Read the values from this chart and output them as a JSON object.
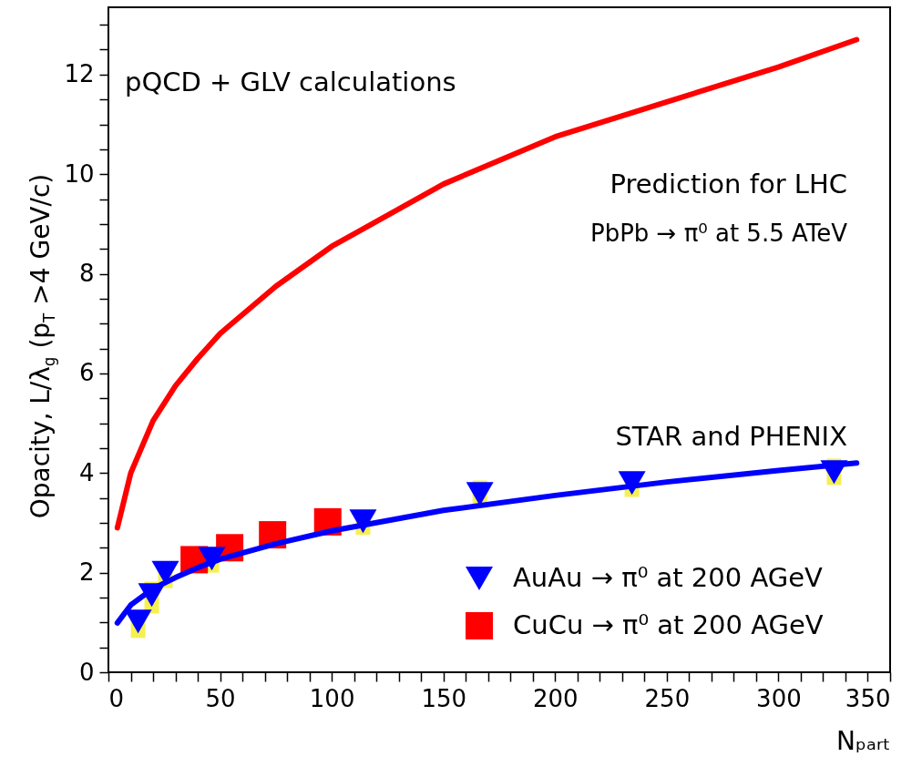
{
  "chart_data": {
    "type": "line",
    "xlabel": "Nₚₐᵣₜ",
    "ylabel": "Opacity, L/λ$_{g}$ (p$_{T}$ >4 GeV/c)",
    "annotations": [
      "pQCD + GLV calculations",
      "Prediction for LHC",
      "PbPb → π⁰ at 5.5 ATeV",
      "STAR and PHENIX"
    ],
    "xlim": [
      0,
      350
    ],
    "ylim": [
      0,
      13.35
    ],
    "xticks": [
      0,
      {
        "value": 10,
        "label": null
      },
      {
        "value": 20,
        "label": null
      },
      {
        "value": 30,
        "label": null
      },
      {
        "value": 40,
        "label": null
      },
      50,
      {
        "value": 60,
        "label": null
      },
      {
        "value": 70,
        "label": null
      },
      {
        "value": 80,
        "label": null
      },
      {
        "value": 90,
        "label": null
      },
      100,
      {
        "value": 110,
        "label": null
      },
      {
        "value": 120,
        "label": null
      },
      {
        "value": 130,
        "label": null
      },
      {
        "value": 140,
        "label": null
      },
      150,
      {
        "value": 160,
        "label": null
      },
      {
        "value": 170,
        "label": null
      },
      {
        "value": 180,
        "label": null
      },
      {
        "value": 190,
        "label": null
      },
      200,
      {
        "value": 210,
        "label": null
      },
      {
        "value": 220,
        "label": null
      },
      {
        "value": 230,
        "label": null
      },
      {
        "value": 240,
        "label": null
      },
      250,
      {
        "value": 260,
        "label": null
      },
      {
        "value": 270,
        "label": null
      },
      {
        "value": 280,
        "label": null
      },
      {
        "value": 290,
        "label": null
      },
      300,
      {
        "value": 310,
        "label": null
      },
      {
        "value": 320,
        "label": null
      },
      {
        "value": 330,
        "label": null
      },
      {
        "value": 340,
        "label": null
      },
      350
    ],
    "yticks": [
      0,
      {
        "value": 0.5,
        "label": null
      },
      {
        "value": 1,
        "label": null
      },
      {
        "value": 1.5,
        "label": null
      },
      2,
      {
        "value": 2.5,
        "label": null
      },
      {
        "value": 3,
        "label": null
      },
      {
        "value": 3.5,
        "label": null
      },
      4,
      {
        "value": 4.5,
        "label": null
      },
      {
        "value": 5,
        "label": null
      },
      {
        "value": 5.5,
        "label": null
      },
      6,
      {
        "value": 6.5,
        "label": null
      },
      {
        "value": 7,
        "label": null
      },
      {
        "value": 7.5,
        "label": null
      },
      8,
      {
        "value": 8.5,
        "label": null
      },
      {
        "value": 9,
        "label": null
      },
      {
        "value": 9.5,
        "label": null
      },
      10,
      {
        "value": 10.5,
        "label": null
      },
      {
        "value": 11,
        "label": null
      },
      {
        "value": 11.5,
        "label": null
      },
      12,
      {
        "value": 12.5,
        "label": null
      },
      {
        "value": 13,
        "label": null
      }
    ],
    "legend": "bottom right",
    "series": [
      {
        "type": "line",
        "color": "#ff0000",
        "x": [
          4,
          10,
          20,
          30,
          40,
          50,
          75,
          100,
          150,
          200,
          250,
          300,
          335
        ],
        "values": [
          2.9,
          4.0,
          5.05,
          5.75,
          6.3,
          6.8,
          7.75,
          8.55,
          9.8,
          10.75,
          11.45,
          12.15,
          12.7
        ]
      },
      {
        "type": "line",
        "color": "#0000ff",
        "x": [
          4,
          10,
          20,
          30,
          40,
          50,
          75,
          100,
          150,
          200,
          250,
          300,
          335
        ],
        "values": [
          0.99,
          1.35,
          1.68,
          1.9,
          2.1,
          2.27,
          2.58,
          2.84,
          3.25,
          3.55,
          3.82,
          4.05,
          4.2
        ]
      },
      {
        "type": "scatter",
        "name": "AuAu → π⁰ at 200 AGeV",
        "color": "#0000ff",
        "marker": "triangle",
        "x": [
          13.3,
          19.4,
          25.5,
          46.3,
          114,
          166.3,
          234.4,
          324.9
        ],
        "values": [
          1.02,
          1.55,
          2.0,
          2.28,
          3.03,
          3.58,
          3.8,
          4.02
        ],
        "errors": [
          [
            0.69,
            1.23
          ],
          [
            1.18,
            1.82
          ],
          [
            1.69,
            2.2
          ],
          [
            2.0,
            2.48
          ],
          [
            2.76,
            3.25
          ],
          [
            3.3,
            3.85
          ],
          [
            3.52,
            4.03
          ],
          [
            3.76,
            4.29
          ]
        ]
      },
      {
        "type": "scatter",
        "name": "CuCu → π⁰ at 200 AGeV",
        "color": "#ff0000",
        "marker": "square",
        "x": [
          38.4,
          54.3,
          73.5,
          98.2
        ],
        "values": [
          2.26,
          2.5,
          2.76,
          3.02
        ]
      }
    ]
  }
}
